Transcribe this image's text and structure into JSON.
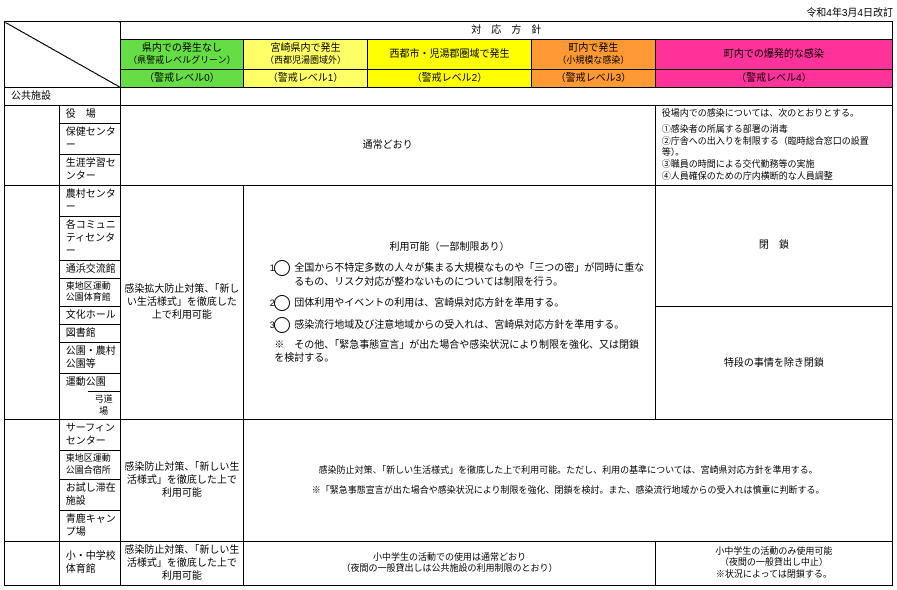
{
  "date": "令和4年3月4日改訂",
  "header": {
    "title": "対　応　方　針"
  },
  "levels": [
    {
      "title": "県内での発生なし",
      "sub": "（県警戒レベルグリーン）",
      "lv": "（警戒レベル0）",
      "bg": "#66dd44"
    },
    {
      "title": "宮崎県内で発生",
      "sub": "（西都児湯圏域外）",
      "lv": "（警戒レベル1）",
      "bg": "#ffff66"
    },
    {
      "title": "西都市・児湯郡圏域で発生",
      "sub": "",
      "lv": "（警戒レベル2）",
      "bg": "#ffff00"
    },
    {
      "title": "町内で発生",
      "sub": "（小規模な感染）",
      "lv": "（警戒レベル3）",
      "bg": "#ff9933"
    },
    {
      "title": "町内での爆発的な感染",
      "sub": "",
      "lv": "（警戒レベル4）",
      "bg": "#ff3399"
    }
  ],
  "cat1": "公共施設",
  "r1": [
    "役　場",
    "保健センター",
    "生涯学習センター"
  ],
  "r1b": "通常どおり",
  "r1r_title": "役場内での感染については、次のとおりとする。",
  "r1r_items": [
    "①感染者の所属する部署の消毒",
    "②庁舎への出入りを制限する（臨時総合窓口の設置等）。",
    "③職員の時間による交代勤務等の実施",
    "④人員確保のための庁内横断的な人員調整"
  ],
  "r2": [
    "農村センター",
    "各コミュニティセンター",
    "通浜交流館",
    "東地区運動公園体育館",
    "文化ホール",
    "図書館",
    "公園・農村公園等",
    "運動公園"
  ],
  "r2sub": "弓道場",
  "r2a": "感染拡大防止対策、「新しい生活様式」を徹底した上で利用可能",
  "r2b_title": "利用可能（一部制限あり）",
  "r2b_items": [
    "全国から不特定多数の人々が集まる大規模なものや「三つの密」が同時に重なるもの、リスク対応が整わないものについては制限を行う。",
    "団体利用やイベントの利用は、宮崎県対応方針を準用する。",
    "感染流行地域及び注意地域からの受入れは、宮崎県対応方針を準用する。"
  ],
  "r2b_note": "※　その他、「緊急事態宣言」が出た場合や感染状況により制限を強化、又は閉鎖を検討する。",
  "r2r1": "閉　鎖",
  "r2r2": "特段の事情を除き閉鎖",
  "r3": [
    "サーフィンセンター",
    "東地区運動公園合宿所",
    "お試し滞在施設",
    "青鹿キャンプ場"
  ],
  "r3a": "感染防止対策、「新しい生活様式」を徹底した上で利用可能",
  "r3b1": "感染防止対策、「新しい生活様式」を徹底した上で利用可能。ただし、利用の基準については、宮崎県対応方針を準用する。",
  "r3b2": "※「緊急事態宣言が出た場合や感染状況により制限を強化、閉鎖を検討。また、感染流行地域からの受入れは慎重に判断する。",
  "r4": "小・中学校体育館",
  "r4a": "感染防止対策、「新しい生活様式」を徹底した上で利用可能",
  "r4b1": "小中学生の活動での使用は通常どおり",
  "r4b2": "（夜間の一般貸出しは公共施設の利用制限のとおり）",
  "r4r": "小中学生の活動のみ使用可能\n（夜間の一般貸出し中止）\n※状況によっては閉鎖する。"
}
